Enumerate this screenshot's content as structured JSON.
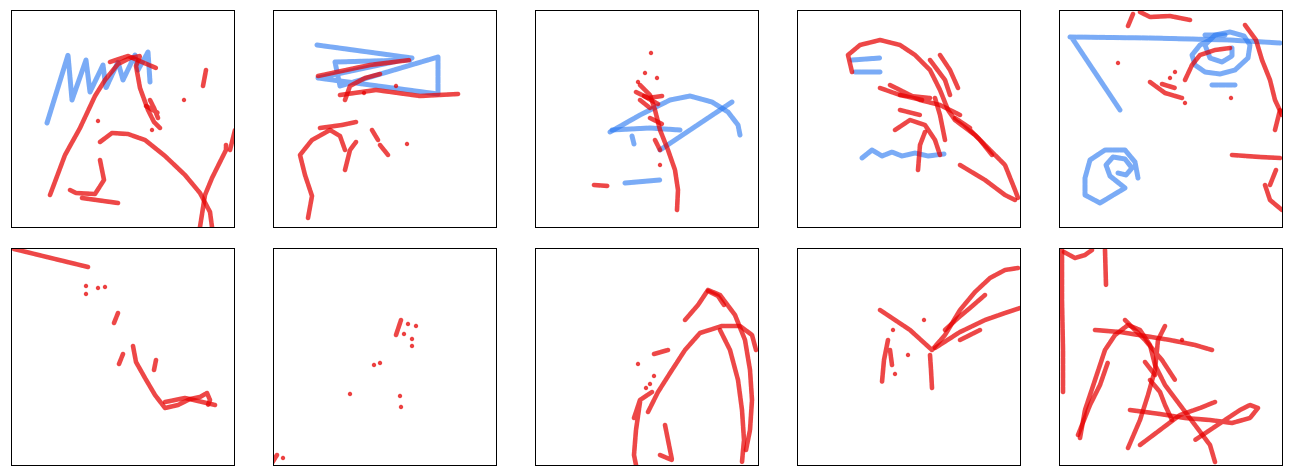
{
  "figure": {
    "rows": 2,
    "cols": 5,
    "stroke_colors": {
      "red": "#e60000",
      "blue": "#2878f0"
    },
    "panels": [
      {
        "id": "r1c1"
      },
      {
        "id": "r1c2"
      },
      {
        "id": "r1c3"
      },
      {
        "id": "r1c4"
      },
      {
        "id": "r1c5"
      },
      {
        "id": "r2c1"
      },
      {
        "id": "r2c2"
      },
      {
        "id": "r2c3"
      },
      {
        "id": "r2c4"
      },
      {
        "id": "r2c5"
      }
    ]
  }
}
